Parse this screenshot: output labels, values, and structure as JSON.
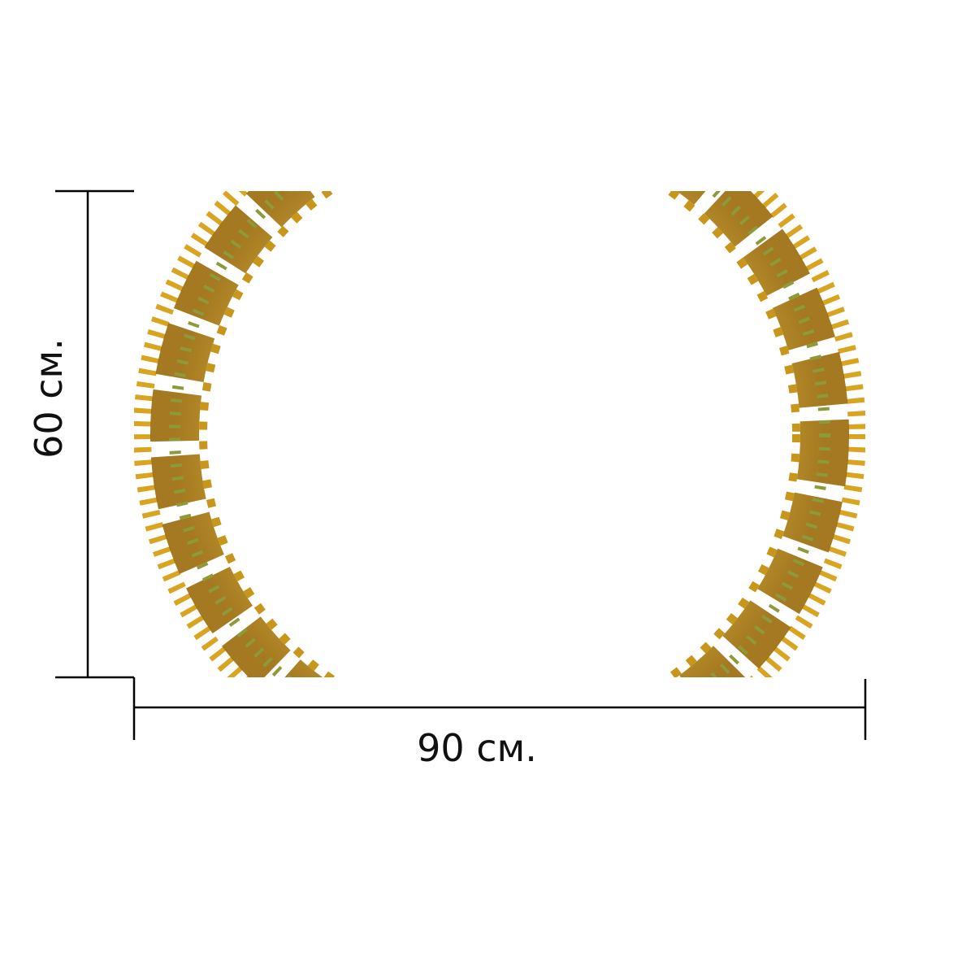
{
  "dimensions": {
    "width_label": "90 см.",
    "height_label": "60 см."
  }
}
